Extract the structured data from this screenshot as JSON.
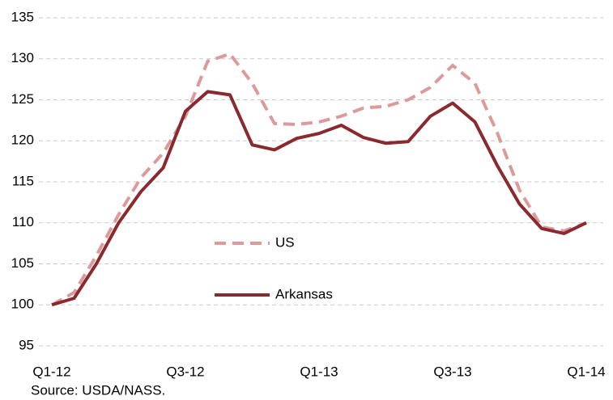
{
  "chart_data": {
    "type": "line",
    "categories": [
      "Q1-12",
      null,
      null,
      null,
      null,
      null,
      "Q3-12",
      null,
      null,
      null,
      null,
      null,
      "Q1-13",
      null,
      null,
      null,
      null,
      null,
      "Q3-13",
      null,
      null,
      null,
      null,
      null,
      "Q1-14"
    ],
    "series": [
      {
        "name": "US",
        "color": "#dc9a9a",
        "style": "dashed",
        "values": [
          100,
          101.5,
          106,
          111,
          115.5,
          118.5,
          123,
          129.7,
          130.6,
          127,
          122.1,
          122,
          122.3,
          123,
          124,
          124.2,
          125,
          126.5,
          129.2,
          127,
          121,
          114,
          109.5,
          109,
          110
        ]
      },
      {
        "name": "Arkansas",
        "color": "#8b2a2e",
        "style": "solid",
        "values": [
          100,
          100.8,
          105,
          110,
          113.8,
          116.7,
          123.6,
          126,
          125.6,
          119.5,
          118.9,
          120.3,
          120.9,
          121.9,
          120.4,
          119.7,
          119.9,
          123,
          124.6,
          122.3,
          117,
          112.3,
          109.3,
          108.7,
          110
        ]
      }
    ],
    "ylim": [
      95,
      135
    ],
    "yticks": [
      95,
      100,
      105,
      110,
      115,
      120,
      125,
      130,
      135
    ],
    "grid": true,
    "source": "Source: USDA/NASS."
  }
}
